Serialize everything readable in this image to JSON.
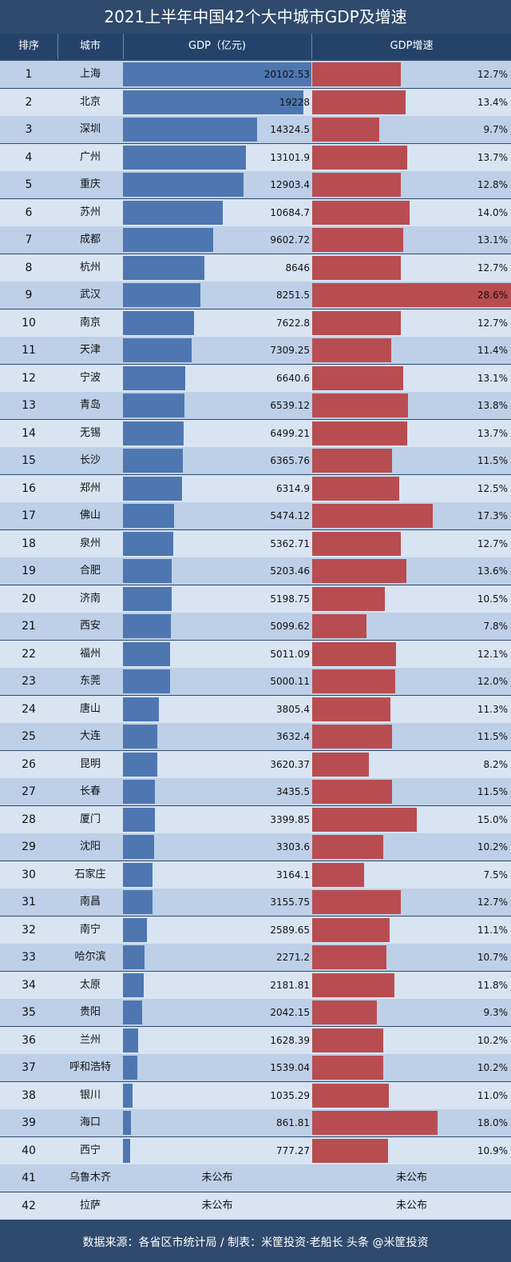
{
  "title": "2021上半年中国42个大中城市GDP及增速",
  "headers": {
    "rank": "排序",
    "city": "城市",
    "gdp": "GDP（亿元)",
    "growth": "GDP增速"
  },
  "footer": "数据来源：各省区市统计局 / 制表：米筐投资·老船长  头条 @米筐投资",
  "colors": {
    "gdp_bar": "#4e77b1",
    "growth_bar": "#b84d51",
    "header_bg": "#25436a",
    "title_bg": "#2f4a6d"
  },
  "chart_data": {
    "type": "table",
    "gdp_max": 20102.53,
    "growth_max": 28.6,
    "rows": [
      {
        "rank": "1",
        "city": "上海",
        "gdp": 20102.53,
        "gdp_label": "20102.53",
        "growth": 12.7,
        "growth_label": "12.7%"
      },
      {
        "rank": "2",
        "city": "北京",
        "gdp": 19228,
        "gdp_label": "19228",
        "growth": 13.4,
        "growth_label": "13.4%"
      },
      {
        "rank": "3",
        "city": "深圳",
        "gdp": 14324.5,
        "gdp_label": "14324.5",
        "growth": 9.7,
        "growth_label": "9.7%"
      },
      {
        "rank": "4",
        "city": "广州",
        "gdp": 13101.9,
        "gdp_label": "13101.9",
        "growth": 13.7,
        "growth_label": "13.7%"
      },
      {
        "rank": "5",
        "city": "重庆",
        "gdp": 12903.4,
        "gdp_label": "12903.4",
        "growth": 12.8,
        "growth_label": "12.8%"
      },
      {
        "rank": "6",
        "city": "苏州",
        "gdp": 10684.7,
        "gdp_label": "10684.7",
        "growth": 14.0,
        "growth_label": "14.0%"
      },
      {
        "rank": "7",
        "city": "成都",
        "gdp": 9602.72,
        "gdp_label": "9602.72",
        "growth": 13.1,
        "growth_label": "13.1%"
      },
      {
        "rank": "8",
        "city": "杭州",
        "gdp": 8646,
        "gdp_label": "8646",
        "growth": 12.7,
        "growth_label": "12.7%"
      },
      {
        "rank": "9",
        "city": "武汉",
        "gdp": 8251.5,
        "gdp_label": "8251.5",
        "growth": 28.6,
        "growth_label": "28.6%"
      },
      {
        "rank": "10",
        "city": "南京",
        "gdp": 7622.8,
        "gdp_label": "7622.8",
        "growth": 12.7,
        "growth_label": "12.7%"
      },
      {
        "rank": "11",
        "city": "天津",
        "gdp": 7309.25,
        "gdp_label": "7309.25",
        "growth": 11.4,
        "growth_label": "11.4%"
      },
      {
        "rank": "12",
        "city": "宁波",
        "gdp": 6640.6,
        "gdp_label": "6640.6",
        "growth": 13.1,
        "growth_label": "13.1%"
      },
      {
        "rank": "13",
        "city": "青岛",
        "gdp": 6539.12,
        "gdp_label": "6539.12",
        "growth": 13.8,
        "growth_label": "13.8%"
      },
      {
        "rank": "14",
        "city": "无锡",
        "gdp": 6499.21,
        "gdp_label": "6499.21",
        "growth": 13.7,
        "growth_label": "13.7%"
      },
      {
        "rank": "15",
        "city": "长沙",
        "gdp": 6365.76,
        "gdp_label": "6365.76",
        "growth": 11.5,
        "growth_label": "11.5%"
      },
      {
        "rank": "16",
        "city": "郑州",
        "gdp": 6314.9,
        "gdp_label": "6314.9",
        "growth": 12.5,
        "growth_label": "12.5%"
      },
      {
        "rank": "17",
        "city": "佛山",
        "gdp": 5474.12,
        "gdp_label": "5474.12",
        "growth": 17.3,
        "growth_label": "17.3%"
      },
      {
        "rank": "18",
        "city": "泉州",
        "gdp": 5362.71,
        "gdp_label": "5362.71",
        "growth": 12.7,
        "growth_label": "12.7%"
      },
      {
        "rank": "19",
        "city": "合肥",
        "gdp": 5203.46,
        "gdp_label": "5203.46",
        "growth": 13.6,
        "growth_label": "13.6%"
      },
      {
        "rank": "20",
        "city": "济南",
        "gdp": 5198.75,
        "gdp_label": "5198.75",
        "growth": 10.5,
        "growth_label": "10.5%"
      },
      {
        "rank": "21",
        "city": "西安",
        "gdp": 5099.62,
        "gdp_label": "5099.62",
        "growth": 7.8,
        "growth_label": "7.8%"
      },
      {
        "rank": "22",
        "city": "福州",
        "gdp": 5011.09,
        "gdp_label": "5011.09",
        "growth": 12.1,
        "growth_label": "12.1%"
      },
      {
        "rank": "23",
        "city": "东莞",
        "gdp": 5000.11,
        "gdp_label": "5000.11",
        "growth": 12.0,
        "growth_label": "12.0%"
      },
      {
        "rank": "24",
        "city": "唐山",
        "gdp": 3805.4,
        "gdp_label": "3805.4",
        "growth": 11.3,
        "growth_label": "11.3%"
      },
      {
        "rank": "25",
        "city": "大连",
        "gdp": 3632.4,
        "gdp_label": "3632.4",
        "growth": 11.5,
        "growth_label": "11.5%"
      },
      {
        "rank": "26",
        "city": "昆明",
        "gdp": 3620.37,
        "gdp_label": "3620.37",
        "growth": 8.2,
        "growth_label": "8.2%"
      },
      {
        "rank": "27",
        "city": "长春",
        "gdp": 3435.5,
        "gdp_label": "3435.5",
        "growth": 11.5,
        "growth_label": "11.5%"
      },
      {
        "rank": "28",
        "city": "厦门",
        "gdp": 3399.85,
        "gdp_label": "3399.85",
        "growth": 15.0,
        "growth_label": "15.0%"
      },
      {
        "rank": "29",
        "city": "沈阳",
        "gdp": 3303.6,
        "gdp_label": "3303.6",
        "growth": 10.2,
        "growth_label": "10.2%"
      },
      {
        "rank": "30",
        "city": "石家庄",
        "gdp": 3164.1,
        "gdp_label": "3164.1",
        "growth": 7.5,
        "growth_label": "7.5%"
      },
      {
        "rank": "31",
        "city": "南昌",
        "gdp": 3155.75,
        "gdp_label": "3155.75",
        "growth": 12.7,
        "growth_label": "12.7%"
      },
      {
        "rank": "32",
        "city": "南宁",
        "gdp": 2589.65,
        "gdp_label": "2589.65",
        "growth": 11.1,
        "growth_label": "11.1%"
      },
      {
        "rank": "33",
        "city": "哈尔滨",
        "gdp": 2271.2,
        "gdp_label": "2271.2",
        "growth": 10.7,
        "growth_label": "10.7%"
      },
      {
        "rank": "34",
        "city": "太原",
        "gdp": 2181.81,
        "gdp_label": "2181.81",
        "growth": 11.8,
        "growth_label": "11.8%"
      },
      {
        "rank": "35",
        "city": "贵阳",
        "gdp": 2042.15,
        "gdp_label": "2042.15",
        "growth": 9.3,
        "growth_label": "9.3%"
      },
      {
        "rank": "36",
        "city": "兰州",
        "gdp": 1628.39,
        "gdp_label": "1628.39",
        "growth": 10.2,
        "growth_label": "10.2%"
      },
      {
        "rank": "37",
        "city": "呼和浩特",
        "gdp": 1539.04,
        "gdp_label": "1539.04",
        "growth": 10.2,
        "growth_label": "10.2%"
      },
      {
        "rank": "38",
        "city": "银川",
        "gdp": 1035.29,
        "gdp_label": "1035.29",
        "growth": 11.0,
        "growth_label": "11.0%"
      },
      {
        "rank": "39",
        "city": "海口",
        "gdp": 861.81,
        "gdp_label": "861.81",
        "growth": 18.0,
        "growth_label": "18.0%"
      },
      {
        "rank": "40",
        "city": "西宁",
        "gdp": 777.27,
        "gdp_label": "777.27",
        "growth": 10.9,
        "growth_label": "10.9%"
      },
      {
        "rank": "41",
        "city": "乌鲁木齐",
        "gdp": null,
        "gdp_label": "未公布",
        "growth": null,
        "growth_label": "未公布"
      },
      {
        "rank": "42",
        "city": "拉萨",
        "gdp": null,
        "gdp_label": "未公布",
        "growth": null,
        "growth_label": "未公布"
      }
    ]
  }
}
